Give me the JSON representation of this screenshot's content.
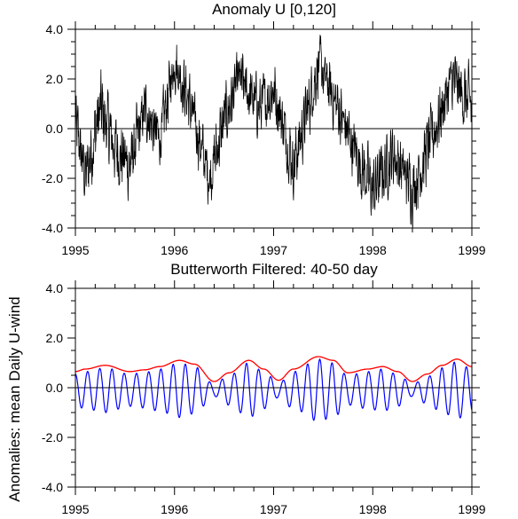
{
  "figure": {
    "shared_ylabel": "Anomalies: mean Daily U-wind"
  },
  "chart_data": [
    {
      "type": "line",
      "title": "Anomaly U [0,120]",
      "xlabel": "",
      "ylabel": "Anomalies: mean Daily U-wind",
      "xlim": [
        1995,
        1999
      ],
      "ylim": [
        -4,
        4
      ],
      "x_ticks": [
        1995,
        1996,
        1997,
        1998,
        1999
      ],
      "x_tick_labels": [
        "1995",
        "1996",
        "1997",
        "1998",
        "1999"
      ],
      "y_ticks": [
        -4,
        -2,
        0,
        2,
        4
      ],
      "y_tick_labels": [
        "-4.0",
        "-2.0",
        "0.0",
        "2.0",
        "4.0"
      ],
      "reference_line": 0,
      "series": [
        {
          "color": "#000000",
          "sampling": "daily",
          "x_start": 1995,
          "x_end": 1999,
          "envelope_points": [
            {
              "x": 1995.0,
              "mean": 0.2,
              "spread": 1.8
            },
            {
              "x": 1995.1,
              "mean": -2.0,
              "spread": 1.8
            },
            {
              "x": 1995.25,
              "mean": 0.8,
              "spread": 2.2
            },
            {
              "x": 1995.4,
              "mean": -0.8,
              "spread": 2.0
            },
            {
              "x": 1995.55,
              "mean": -1.5,
              "spread": 2.0
            },
            {
              "x": 1995.7,
              "mean": 0.8,
              "spread": 1.6
            },
            {
              "x": 1995.85,
              "mean": -0.5,
              "spread": 1.6
            },
            {
              "x": 1996.0,
              "mean": 2.8,
              "spread": 1.6
            },
            {
              "x": 1996.15,
              "mean": 1.0,
              "spread": 1.6
            },
            {
              "x": 1996.35,
              "mean": -2.0,
              "spread": 1.6
            },
            {
              "x": 1996.5,
              "mean": 0.3,
              "spread": 2.0
            },
            {
              "x": 1996.65,
              "mean": 2.0,
              "spread": 1.6
            },
            {
              "x": 1996.85,
              "mean": 0.8,
              "spread": 1.6
            },
            {
              "x": 1997.0,
              "mean": 1.6,
              "spread": 1.6
            },
            {
              "x": 1997.2,
              "mean": -1.5,
              "spread": 1.8
            },
            {
              "x": 1997.45,
              "mean": 2.6,
              "spread": 1.6
            },
            {
              "x": 1997.65,
              "mean": 0.8,
              "spread": 1.6
            },
            {
              "x": 1997.85,
              "mean": -1.2,
              "spread": 1.8
            },
            {
              "x": 1998.0,
              "mean": -2.5,
              "spread": 1.8
            },
            {
              "x": 1998.2,
              "mean": -1.0,
              "spread": 1.6
            },
            {
              "x": 1998.4,
              "mean": -2.4,
              "spread": 1.8
            },
            {
              "x": 1998.6,
              "mean": -0.3,
              "spread": 1.8
            },
            {
              "x": 1998.8,
              "mean": 2.0,
              "spread": 1.6
            },
            {
              "x": 1999.0,
              "mean": 0.8,
              "spread": 2.0
            }
          ]
        }
      ]
    },
    {
      "type": "line",
      "title": "Butterworth Filtered: 40-50 day",
      "xlabel": "",
      "ylabel": "Anomalies: mean Daily U-wind",
      "xlim": [
        1995,
        1999
      ],
      "ylim": [
        -4,
        4
      ],
      "x_ticks": [
        1995,
        1996,
        1997,
        1998,
        1999
      ],
      "x_tick_labels": [
        "1995",
        "1996",
        "1997",
        "1998",
        "1999"
      ],
      "y_ticks": [
        -4,
        -2,
        0,
        2,
        4
      ],
      "y_tick_labels": [
        "-4.0",
        "-2.0",
        "0.0",
        "2.0",
        "4.0"
      ],
      "reference_line": 0,
      "series": [
        {
          "role": "filtered",
          "color": "#0000ff",
          "period_days": 45,
          "center_offset": -0.1
        },
        {
          "role": "envelope",
          "color": "#ff0000",
          "x": [
            1995.0,
            1995.1,
            1995.3,
            1995.55,
            1995.7,
            1995.85,
            1996.05,
            1996.2,
            1996.4,
            1996.55,
            1996.75,
            1996.9,
            1997.05,
            1997.2,
            1997.45,
            1997.6,
            1997.75,
            1997.95,
            1998.1,
            1998.25,
            1998.4,
            1998.55,
            1998.7,
            1998.85,
            1999.0
          ],
          "y": [
            0.65,
            0.75,
            0.9,
            0.65,
            0.72,
            0.85,
            1.1,
            0.95,
            0.25,
            0.6,
            1.1,
            0.75,
            0.3,
            0.75,
            1.25,
            1.1,
            0.6,
            0.75,
            0.85,
            0.65,
            0.25,
            0.55,
            0.9,
            1.15,
            0.85
          ]
        }
      ]
    }
  ]
}
